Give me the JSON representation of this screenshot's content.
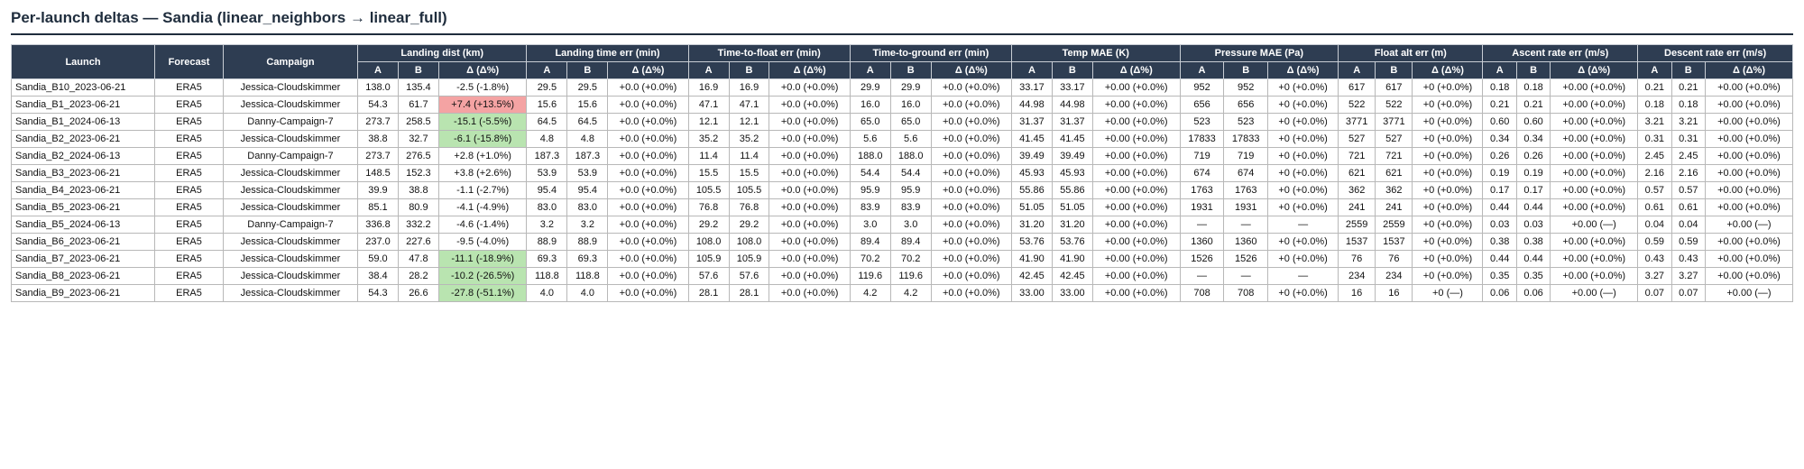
{
  "title": "Per-launch deltas — Sandia (linear_neighbors → linear_full)",
  "table": {
    "fixed_headers": [
      "Launch",
      "Forecast",
      "Campaign"
    ],
    "groups": [
      "Landing dist (km)",
      "Landing time err (min)",
      "Time-to-float err (min)",
      "Time-to-ground err (min)",
      "Temp MAE (K)",
      "Pressure MAE (Pa)",
      "Float alt err (m)",
      "Ascent rate err (m/s)",
      "Descent rate err (m/s)"
    ],
    "subheaders": [
      "A",
      "B",
      "Δ (Δ%)"
    ],
    "highlights": [
      {
        "row": 1,
        "col": 5,
        "color": "#f4a3a3"
      },
      {
        "row": 2,
        "col": 5,
        "color": "#b9e4b0"
      },
      {
        "row": 3,
        "col": 5,
        "color": "#b9e4b0"
      },
      {
        "row": 10,
        "col": 5,
        "color": "#b9e4b0"
      },
      {
        "row": 11,
        "col": 5,
        "color": "#b9e4b0"
      },
      {
        "row": 12,
        "col": 5,
        "color": "#b9e4b0"
      }
    ],
    "rows": [
      [
        "Sandia_B10_2023-06-21",
        "ERA5",
        "Jessica-Cloudskimmer",
        "138.0",
        "135.4",
        "-2.5 (-1.8%)",
        "29.5",
        "29.5",
        "+0.0 (+0.0%)",
        "16.9",
        "16.9",
        "+0.0 (+0.0%)",
        "29.9",
        "29.9",
        "+0.0 (+0.0%)",
        "33.17",
        "33.17",
        "+0.00 (+0.0%)",
        "952",
        "952",
        "+0 (+0.0%)",
        "617",
        "617",
        "+0 (+0.0%)",
        "0.18",
        "0.18",
        "+0.00 (+0.0%)",
        "0.21",
        "0.21",
        "+0.00 (+0.0%)"
      ],
      [
        "Sandia_B1_2023-06-21",
        "ERA5",
        "Jessica-Cloudskimmer",
        "54.3",
        "61.7",
        "+7.4 (+13.5%)",
        "15.6",
        "15.6",
        "+0.0 (+0.0%)",
        "47.1",
        "47.1",
        "+0.0 (+0.0%)",
        "16.0",
        "16.0",
        "+0.0 (+0.0%)",
        "44.98",
        "44.98",
        "+0.00 (+0.0%)",
        "656",
        "656",
        "+0 (+0.0%)",
        "522",
        "522",
        "+0 (+0.0%)",
        "0.21",
        "0.21",
        "+0.00 (+0.0%)",
        "0.18",
        "0.18",
        "+0.00 (+0.0%)"
      ],
      [
        "Sandia_B1_2024-06-13",
        "ERA5",
        "Danny-Campaign-7",
        "273.7",
        "258.5",
        "-15.1 (-5.5%)",
        "64.5",
        "64.5",
        "+0.0 (+0.0%)",
        "12.1",
        "12.1",
        "+0.0 (+0.0%)",
        "65.0",
        "65.0",
        "+0.0 (+0.0%)",
        "31.37",
        "31.37",
        "+0.00 (+0.0%)",
        "523",
        "523",
        "+0 (+0.0%)",
        "3771",
        "3771",
        "+0 (+0.0%)",
        "0.60",
        "0.60",
        "+0.00 (+0.0%)",
        "3.21",
        "3.21",
        "+0.00 (+0.0%)"
      ],
      [
        "Sandia_B2_2023-06-21",
        "ERA5",
        "Jessica-Cloudskimmer",
        "38.8",
        "32.7",
        "-6.1 (-15.8%)",
        "4.8",
        "4.8",
        "+0.0 (+0.0%)",
        "35.2",
        "35.2",
        "+0.0 (+0.0%)",
        "5.6",
        "5.6",
        "+0.0 (+0.0%)",
        "41.45",
        "41.45",
        "+0.00 (+0.0%)",
        "17833",
        "17833",
        "+0 (+0.0%)",
        "527",
        "527",
        "+0 (+0.0%)",
        "0.34",
        "0.34",
        "+0.00 (+0.0%)",
        "0.31",
        "0.31",
        "+0.00 (+0.0%)"
      ],
      [
        "Sandia_B2_2024-06-13",
        "ERA5",
        "Danny-Campaign-7",
        "273.7",
        "276.5",
        "+2.8 (+1.0%)",
        "187.3",
        "187.3",
        "+0.0 (+0.0%)",
        "11.4",
        "11.4",
        "+0.0 (+0.0%)",
        "188.0",
        "188.0",
        "+0.0 (+0.0%)",
        "39.49",
        "39.49",
        "+0.00 (+0.0%)",
        "719",
        "719",
        "+0 (+0.0%)",
        "721",
        "721",
        "+0 (+0.0%)",
        "0.26",
        "0.26",
        "+0.00 (+0.0%)",
        "2.45",
        "2.45",
        "+0.00 (+0.0%)"
      ],
      [
        "Sandia_B3_2023-06-21",
        "ERA5",
        "Jessica-Cloudskimmer",
        "148.5",
        "152.3",
        "+3.8 (+2.6%)",
        "53.9",
        "53.9",
        "+0.0 (+0.0%)",
        "15.5",
        "15.5",
        "+0.0 (+0.0%)",
        "54.4",
        "54.4",
        "+0.0 (+0.0%)",
        "45.93",
        "45.93",
        "+0.00 (+0.0%)",
        "674",
        "674",
        "+0 (+0.0%)",
        "621",
        "621",
        "+0 (+0.0%)",
        "0.19",
        "0.19",
        "+0.00 (+0.0%)",
        "2.16",
        "2.16",
        "+0.00 (+0.0%)"
      ],
      [
        "Sandia_B4_2023-06-21",
        "ERA5",
        "Jessica-Cloudskimmer",
        "39.9",
        "38.8",
        "-1.1 (-2.7%)",
        "95.4",
        "95.4",
        "+0.0 (+0.0%)",
        "105.5",
        "105.5",
        "+0.0 (+0.0%)",
        "95.9",
        "95.9",
        "+0.0 (+0.0%)",
        "55.86",
        "55.86",
        "+0.00 (+0.0%)",
        "1763",
        "1763",
        "+0 (+0.0%)",
        "362",
        "362",
        "+0 (+0.0%)",
        "0.17",
        "0.17",
        "+0.00 (+0.0%)",
        "0.57",
        "0.57",
        "+0.00 (+0.0%)"
      ],
      [
        "Sandia_B5_2023-06-21",
        "ERA5",
        "Jessica-Cloudskimmer",
        "85.1",
        "80.9",
        "-4.1 (-4.9%)",
        "83.0",
        "83.0",
        "+0.0 (+0.0%)",
        "76.8",
        "76.8",
        "+0.0 (+0.0%)",
        "83.9",
        "83.9",
        "+0.0 (+0.0%)",
        "51.05",
        "51.05",
        "+0.00 (+0.0%)",
        "1931",
        "1931",
        "+0 (+0.0%)",
        "241",
        "241",
        "+0 (+0.0%)",
        "0.44",
        "0.44",
        "+0.00 (+0.0%)",
        "0.61",
        "0.61",
        "+0.00 (+0.0%)"
      ],
      [
        "Sandia_B5_2024-06-13",
        "ERA5",
        "Danny-Campaign-7",
        "336.8",
        "332.2",
        "-4.6 (-1.4%)",
        "3.2",
        "3.2",
        "+0.0 (+0.0%)",
        "29.2",
        "29.2",
        "+0.0 (+0.0%)",
        "3.0",
        "3.0",
        "+0.0 (+0.0%)",
        "31.20",
        "31.20",
        "+0.00 (+0.0%)",
        "—",
        "—",
        "—",
        "2559",
        "2559",
        "+0 (+0.0%)",
        "0.03",
        "0.03",
        "+0.00 (—)",
        "0.04",
        "0.04",
        "+0.00 (—)"
      ],
      [
        "Sandia_B6_2023-06-21",
        "ERA5",
        "Jessica-Cloudskimmer",
        "237.0",
        "227.6",
        "-9.5 (-4.0%)",
        "88.9",
        "88.9",
        "+0.0 (+0.0%)",
        "108.0",
        "108.0",
        "+0.0 (+0.0%)",
        "89.4",
        "89.4",
        "+0.0 (+0.0%)",
        "53.76",
        "53.76",
        "+0.00 (+0.0%)",
        "1360",
        "1360",
        "+0 (+0.0%)",
        "1537",
        "1537",
        "+0 (+0.0%)",
        "0.38",
        "0.38",
        "+0.00 (+0.0%)",
        "0.59",
        "0.59",
        "+0.00 (+0.0%)"
      ],
      [
        "Sandia_B7_2023-06-21",
        "ERA5",
        "Jessica-Cloudskimmer",
        "59.0",
        "47.8",
        "-11.1 (-18.9%)",
        "69.3",
        "69.3",
        "+0.0 (+0.0%)",
        "105.9",
        "105.9",
        "+0.0 (+0.0%)",
        "70.2",
        "70.2",
        "+0.0 (+0.0%)",
        "41.90",
        "41.90",
        "+0.00 (+0.0%)",
        "1526",
        "1526",
        "+0 (+0.0%)",
        "76",
        "76",
        "+0 (+0.0%)",
        "0.44",
        "0.44",
        "+0.00 (+0.0%)",
        "0.43",
        "0.43",
        "+0.00 (+0.0%)"
      ],
      [
        "Sandia_B8_2023-06-21",
        "ERA5",
        "Jessica-Cloudskimmer",
        "38.4",
        "28.2",
        "-10.2 (-26.5%)",
        "118.8",
        "118.8",
        "+0.0 (+0.0%)",
        "57.6",
        "57.6",
        "+0.0 (+0.0%)",
        "119.6",
        "119.6",
        "+0.0 (+0.0%)",
        "42.45",
        "42.45",
        "+0.00 (+0.0%)",
        "—",
        "—",
        "—",
        "234",
        "234",
        "+0 (+0.0%)",
        "0.35",
        "0.35",
        "+0.00 (+0.0%)",
        "3.27",
        "3.27",
        "+0.00 (+0.0%)"
      ],
      [
        "Sandia_B9_2023-06-21",
        "ERA5",
        "Jessica-Cloudskimmer",
        "54.3",
        "26.6",
        "-27.8 (-51.1%)",
        "4.0",
        "4.0",
        "+0.0 (+0.0%)",
        "28.1",
        "28.1",
        "+0.0 (+0.0%)",
        "4.2",
        "4.2",
        "+0.0 (+0.0%)",
        "33.00",
        "33.00",
        "+0.00 (+0.0%)",
        "708",
        "708",
        "+0 (+0.0%)",
        "16",
        "16",
        "+0 (—)",
        "0.06",
        "0.06",
        "+0.00 (—)",
        "0.07",
        "0.07",
        "+0.00 (—)"
      ]
    ]
  }
}
